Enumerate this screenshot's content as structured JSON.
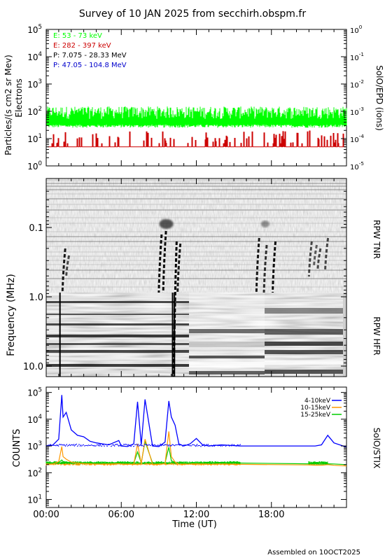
{
  "title": "Survey of 10 JAN 2025 from secchirh.obspm.fr",
  "footer": "Assembled on 10OCT2025",
  "colors": {
    "green": "#00ff00",
    "red": "#cc0000",
    "black": "#000000",
    "blue": "#0000cc",
    "orange": "#ff9900",
    "stix_blue": "#0000ff",
    "stix_green": "#00cc00"
  },
  "panel1": {
    "ylabel_left_1": "Particles/(s cm2 sr Mev)",
    "ylabel_left_2": "Electrons",
    "ylabel_right": "SolO/EPD (ions)",
    "left_ticks": [
      {
        "base": "10",
        "exp": "0"
      },
      {
        "base": "10",
        "exp": "1"
      },
      {
        "base": "10",
        "exp": "2"
      },
      {
        "base": "10",
        "exp": "3"
      },
      {
        "base": "10",
        "exp": "4"
      },
      {
        "base": "10",
        "exp": "5"
      }
    ],
    "right_ticks": [
      {
        "base": "10",
        "exp": "-5"
      },
      {
        "base": "10",
        "exp": "-4"
      },
      {
        "base": "10",
        "exp": "-3"
      },
      {
        "base": "10",
        "exp": "-2"
      },
      {
        "base": "10",
        "exp": "-1"
      },
      {
        "base": "10",
        "exp": "0"
      }
    ],
    "legend": [
      {
        "label": "E: 53 - 73 keV",
        "color": "#00ff00"
      },
      {
        "label": "E: 282 - 397 keV",
        "color": "#cc0000"
      },
      {
        "label": "P: 7.075 - 28.33 MeV",
        "color": "#000000"
      },
      {
        "label": "P: 47.05 - 104.8 MeV",
        "color": "#0000cc"
      }
    ]
  },
  "panel2": {
    "ylabel": "Frequency (MHz)",
    "label_tnr": "RPW TNR",
    "label_hfr": "RPW HFR",
    "ticks": [
      "0.1",
      "1.0",
      "10.0"
    ]
  },
  "panel3": {
    "ylabel": "COUNTS",
    "ylabel_right": "SolO/STIX",
    "ticks": [
      {
        "base": "10",
        "exp": "1"
      },
      {
        "base": "10",
        "exp": "2"
      },
      {
        "base": "10",
        "exp": "3"
      },
      {
        "base": "10",
        "exp": "4"
      },
      {
        "base": "10",
        "exp": "5"
      }
    ],
    "legend": [
      {
        "label": "4-10keV",
        "color": "#0000ff"
      },
      {
        "label": "10-15keV",
        "color": "#ff9900"
      },
      {
        "label": "15-25keV",
        "color": "#00cc00"
      }
    ]
  },
  "xaxis": {
    "label": "Time (UT)",
    "ticks": [
      "00:00",
      "06:00",
      "12:00",
      "18:00"
    ]
  },
  "chart_data": [
    {
      "type": "line",
      "title": "Survey of 10 JAN 2025 from secchirh.obspm.fr",
      "ylabel": "Particles/(s cm2 sr Mev) Electrons",
      "y_scale": "log",
      "ylim": [
        1,
        100000
      ],
      "y2label": "SolO/EPD (ions)",
      "y2lim": [
        1e-05,
        1
      ],
      "xlim_hours": [
        0,
        24
      ],
      "series": [
        {
          "name": "E: 53 - 73 keV",
          "typical_value": 60,
          "range": [
            25,
            150
          ]
        },
        {
          "name": "E: 282 - 397 keV",
          "typical_value": 5,
          "range": [
            5,
            18
          ]
        },
        {
          "name": "P: 7.075 - 28.33 MeV"
        },
        {
          "name": "P: 47.05 - 104.8 MeV"
        }
      ]
    },
    {
      "type": "heatmap",
      "ylabel": "Frequency (MHz)",
      "ylim_mhz": [
        0.02,
        16
      ],
      "instruments": [
        "RPW TNR",
        "RPW HFR"
      ],
      "tnr_hfr_boundary_mhz": 1.0,
      "radio_bursts_hours": [
        1.3,
        1.6,
        9.0,
        9.5,
        10.2,
        10.6,
        16.8,
        17.4,
        18.1,
        21.0,
        21.4,
        21.7,
        22.3
      ],
      "xlim_hours": [
        0,
        24
      ]
    },
    {
      "type": "line",
      "ylabel": "COUNTS",
      "y_scale": "log",
      "ylim": [
        10,
        100000
      ],
      "xlim_hours": [
        0,
        24
      ],
      "x": [
        0,
        0.5,
        1.0,
        1.25,
        1.35,
        1.6,
        2.0,
        2.5,
        3.0,
        3.5,
        4.0,
        5.0,
        5.8,
        6.0,
        6.5,
        7.0,
        7.3,
        7.6,
        7.9,
        8.5,
        9.0,
        9.5,
        9.8,
        10.0,
        10.3,
        10.6,
        11.0,
        11.5,
        12.0,
        12.5,
        13.0,
        14.0,
        15.5,
        21.0,
        21.5,
        22.0,
        22.5,
        23.0,
        24.0
      ],
      "series": [
        {
          "name": "4-10keV",
          "values": [
            1000,
            1050,
            1800,
            80000,
            12000,
            18000,
            4000,
            2500,
            2200,
            1500,
            1300,
            1100,
            1600,
            1000,
            950,
            1200,
            45000,
            1100,
            55000,
            1000,
            950,
            1400,
            48000,
            12000,
            6000,
            1200,
            1000,
            1200,
            1900,
            1100,
            1000,
            1100,
            1000,
            1000,
            1000,
            1100,
            2500,
            1300,
            900
          ]
        },
        {
          "name": "10-15keV",
          "values": [
            210,
            210,
            260,
            950,
            400,
            320,
            250,
            230,
            220,
            215,
            210,
            210,
            220,
            210,
            205,
            210,
            1200,
            215,
            1800,
            210,
            205,
            220,
            3500,
            400,
            250,
            210,
            205,
            210,
            215,
            210,
            205,
            210,
            205,
            195,
            190,
            190,
            200,
            190,
            180
          ]
        },
        {
          "name": "15-25keV",
          "values": [
            230,
            230,
            240,
            300,
            260,
            250,
            240,
            235,
            235,
            230,
            230,
            230,
            235,
            230,
            228,
            230,
            600,
            232,
            1500,
            230,
            228,
            235,
            900,
            280,
            240,
            230,
            228,
            230,
            232,
            230,
            230,
            230,
            230,
            215,
            212,
            210,
            215,
            212,
            200
          ]
        }
      ]
    }
  ]
}
